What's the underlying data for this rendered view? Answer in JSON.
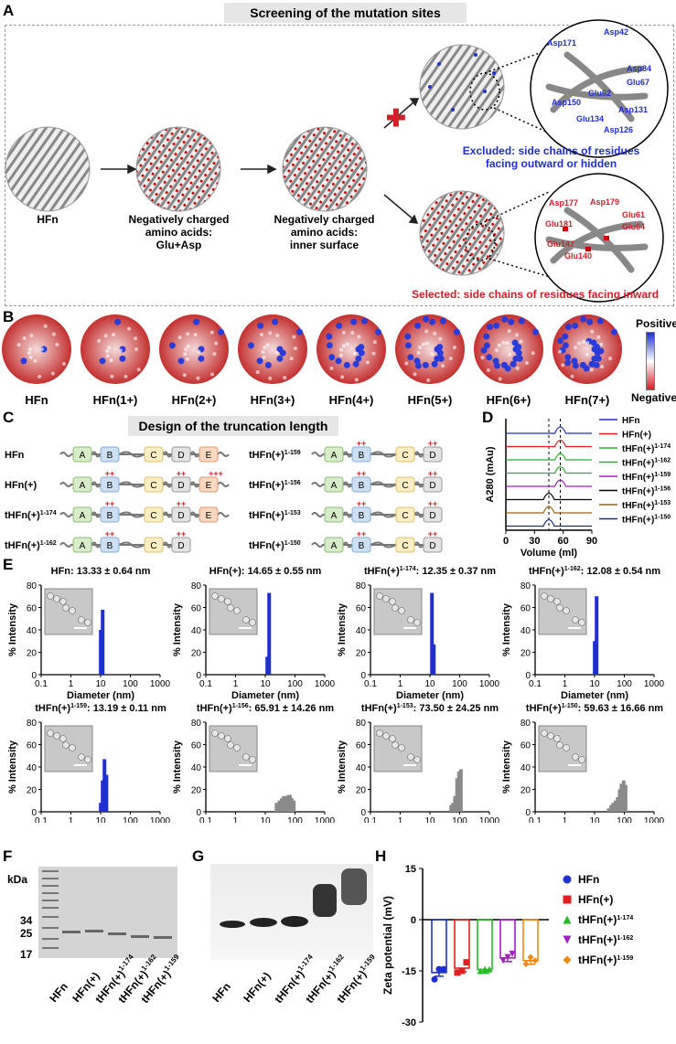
{
  "panel_labels": {
    "a": "A",
    "b": "B",
    "c": "C",
    "d": "D",
    "e": "E",
    "f": "F",
    "g": "G",
    "h": "H"
  },
  "panel_a": {
    "title": "Screening of the mutation sites",
    "stage1": "HFn",
    "stage2": [
      "Negatively charged",
      "amino acids:",
      "Glu+Asp"
    ],
    "stage3": [
      "Negatively charged",
      "amino acids:",
      "inner surface"
    ],
    "excluded": [
      "Excluded: side chains of residues",
      "facing outward or hidden"
    ],
    "selected": "Selected: side chains of residues facing inward",
    "excluded_residues": [
      "Asp171",
      "Asp42",
      "Asp84",
      "Glu67",
      "Glu62",
      "Asp150",
      "Glu134",
      "Asp131",
      "Asp126"
    ],
    "selected_residues": [
      "Asp177",
      "Asp179",
      "Glu61",
      "Glu64",
      "Glu181",
      "Glu147",
      "Glu140"
    ]
  },
  "panel_b": {
    "names": [
      "HFn",
      "HFn(1+)",
      "HFn(2+)",
      "HFn(3+)",
      "HFn(4+)",
      "HFn(5+)",
      "HFn(6+)",
      "HFn(7+)"
    ],
    "scale_pos": "Positive",
    "scale_neg": "Negative"
  },
  "panel_c": {
    "title": "Design of the truncation length",
    "constructs": [
      {
        "name": "HFn",
        "sup": ""
      },
      {
        "name": "HFn(+)",
        "sup": ""
      },
      {
        "name": "tHFn(+)",
        "sup": "1-174"
      },
      {
        "name": "tHFn(+)",
        "sup": "1-162"
      },
      {
        "name": "tHFn(+)",
        "sup": "1-159"
      },
      {
        "name": "tHFn(+)",
        "sup": "1-156"
      },
      {
        "name": "tHFn(+)",
        "sup": "1-153"
      },
      {
        "name": "tHFn(+)",
        "sup": "1-150"
      }
    ],
    "domains": [
      "A",
      "B",
      "C",
      "D",
      "E"
    ],
    "charge2": "++",
    "charge3": "+++"
  },
  "panel_d": {
    "ylabel": "A280 (mAu)",
    "xlabel": "Volume (ml)",
    "xticks": [
      "0",
      "30",
      "60",
      "90"
    ],
    "legend": [
      {
        "name": "HFn",
        "sup": "",
        "color": "#1f2fd0"
      },
      {
        "name": "HFn(+)",
        "sup": "",
        "color": "#e02020"
      },
      {
        "name": "tHFn(+)",
        "sup": "1-174",
        "color": "#22bb22"
      },
      {
        "name": "tHFn(+)",
        "sup": "1-162",
        "color": "#2ab02a"
      },
      {
        "name": "tHFn(+)",
        "sup": "1-159",
        "color": "#a020c0"
      },
      {
        "name": "tHFn(+)",
        "sup": "1-156",
        "color": "#000000"
      },
      {
        "name": "tHFn(+)",
        "sup": "1-153",
        "color": "#a06010"
      },
      {
        "name": "tHFn(+)",
        "sup": "1-150",
        "color": "#1a2a80"
      }
    ]
  },
  "panel_e": {
    "ylabel": "% Intensity",
    "xlabel": "Diameter (nm)",
    "xticks": [
      "0.1",
      "1",
      "10",
      "100",
      "1000"
    ],
    "yticks": [
      "0",
      "20",
      "40",
      "60",
      "80"
    ],
    "plots": [
      {
        "title": "HFn: 13.33 ± 0.64 nm"
      },
      {
        "title": "HFn(+): 14.65 ± 0.55 nm"
      },
      {
        "title_a": "tHFn(+)",
        "sup": "1-174",
        "title_b": ": 12.35 ± 0.37 nm"
      },
      {
        "title_a": "tHFn(+)",
        "sup": "1-162",
        "title_b": ": 12.08 ± 0.54 nm"
      },
      {
        "title_a": "tHFn(+)",
        "sup": "1-159",
        "title_b": ": 13.19 ± 0.11 nm"
      },
      {
        "title_a": "tHFn(+)",
        "sup": "1-156",
        "title_b": ": 65.91 ± 14.26 nm"
      },
      {
        "title_a": "tHFn(+)",
        "sup": "1-153",
        "title_b": ": 73.50 ± 24.25 nm"
      },
      {
        "title_a": "tHFn(+)",
        "sup": "1-150",
        "title_b": ": 59.63 ± 16.66 nm"
      }
    ]
  },
  "panel_f": {
    "kda": "kDa",
    "markers": [
      "34",
      "25",
      "17"
    ],
    "lanes": [
      "HFn",
      "HFn(+)",
      "tHFn(+)1-174",
      "tHFn(+)1-162",
      "tHFn(+)1-159"
    ]
  },
  "panel_g": {
    "lanes": [
      "HFn",
      "HFn(+)",
      "tHFn(+)1-174",
      "tHFn(+)1-162",
      "tHFn(+)1-159"
    ]
  },
  "panel_h": {
    "ylabel": "Zeta potential (mV)",
    "yticks": [
      "15",
      "0",
      "-15",
      "-30"
    ],
    "legend": [
      {
        "name": "HFn",
        "sup": "",
        "color": "#1f2fd0",
        "shape": "circle"
      },
      {
        "name": "HFn(+)",
        "sup": "",
        "color": "#e02020",
        "shape": "square"
      },
      {
        "name": "tHFn(+)",
        "sup": "1-174",
        "color": "#22bb22",
        "shape": "triangle"
      },
      {
        "name": "tHFn(+)",
        "sup": "1-162",
        "color": "#a020c0",
        "shape": "inv-triangle"
      },
      {
        "name": "tHFn(+)",
        "sup": "1-159",
        "color": "#f08a10",
        "shape": "diamond"
      }
    ]
  },
  "chart_data": [
    {
      "type": "line",
      "title": "SEC profiles (panel D)",
      "xlabel": "Volume (ml)",
      "ylabel": "A280 (mAu)",
      "xlim": [
        0,
        90
      ],
      "series": [
        {
          "name": "HFn",
          "peak_volume": 57
        },
        {
          "name": "HFn(+)",
          "peak_volume": 57
        },
        {
          "name": "tHFn(+)1-174",
          "peak_volume": 57
        },
        {
          "name": "tHFn(+)1-162",
          "peak_volume": 57
        },
        {
          "name": "tHFn(+)1-159",
          "peak_volume": 57
        },
        {
          "name": "tHFn(+)1-156",
          "peak_volume": 45
        },
        {
          "name": "tHFn(+)1-153",
          "peak_volume": 45
        },
        {
          "name": "tHFn(+)1-150",
          "peak_volume": 45
        }
      ]
    },
    {
      "type": "bar",
      "title": "DLS size distributions (panel E)",
      "xlabel": "Diameter (nm)",
      "ylabel": "% Intensity",
      "ylim": [
        0,
        80
      ],
      "series": [
        {
          "name": "HFn",
          "x": [
            10.1,
            11.7
          ],
          "values": [
            40,
            58
          ]
        },
        {
          "name": "HFn(+)",
          "x": [
            11.7,
            13.5
          ],
          "values": [
            16,
            73
          ]
        },
        {
          "name": "tHFn(+)1-174",
          "x": [
            11.7,
            13.5
          ],
          "values": [
            73,
            27
          ]
        },
        {
          "name": "tHFn(+)1-162",
          "x": [
            10.1,
            11.7
          ],
          "values": [
            30,
            70
          ]
        },
        {
          "name": "tHFn(+)1-159",
          "x": [
            10.1,
            11.7,
            13.5,
            15.7
          ],
          "values": [
            8,
            28,
            47,
            33
          ]
        },
        {
          "name": "tHFn(+)1-156",
          "x": [
            24,
            30,
            36,
            42,
            51,
            60,
            68,
            78,
            91
          ],
          "values": [
            8,
            10,
            12,
            14,
            14,
            15,
            15,
            12,
            10
          ]
        },
        {
          "name": "tHFn(+)1-153",
          "x": [
            52,
            60,
            70,
            82,
            95,
            110
          ],
          "values": [
            6,
            8,
            14,
            30,
            36,
            38
          ]
        },
        {
          "name": "tHFn(+)1-150",
          "x": [
            30,
            36,
            42,
            51,
            60,
            70,
            80,
            95,
            110
          ],
          "values": [
            3,
            6,
            8,
            10,
            13,
            20,
            25,
            28,
            24
          ]
        }
      ]
    },
    {
      "type": "bar",
      "title": "Zeta potential (panel H)",
      "ylabel": "Zeta potential (mV)",
      "ylim": [
        -30,
        15
      ],
      "categories": [
        "HFn",
        "HFn(+)",
        "tHFn(+)1-174",
        "tHFn(+)1-162",
        "tHFn(+)1-159"
      ],
      "values": [
        -15.5,
        -14.2,
        -14.6,
        -11.2,
        -12.0
      ],
      "points": [
        [
          -17.5,
          -14.5,
          -14.5
        ],
        [
          -15.5,
          -15,
          -12.5
        ],
        [
          -15,
          -14.5,
          -14.5
        ],
        [
          -12,
          -11,
          -10
        ],
        [
          -13,
          -11,
          -12
        ]
      ]
    }
  ]
}
